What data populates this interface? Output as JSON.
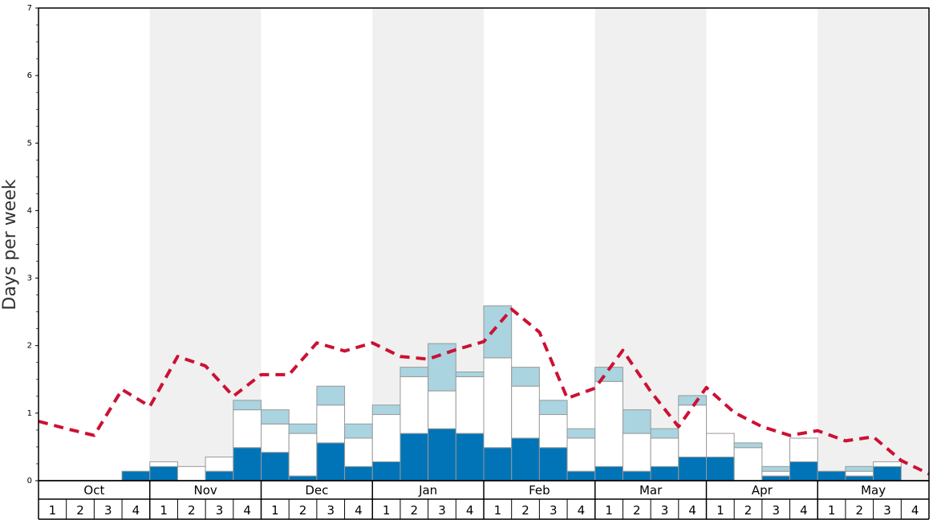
{
  "chart_data": {
    "type": "bar",
    "ylabel": "Days per week",
    "ylim": [
      0,
      7
    ],
    "yticks": [
      0,
      1,
      2,
      3,
      4,
      5,
      6,
      7
    ],
    "months": [
      "Oct",
      "Nov",
      "Dec",
      "Jan",
      "Feb",
      "Mar",
      "Apr",
      "May"
    ],
    "weeks": [
      "1",
      "2",
      "3",
      "4"
    ],
    "colors": {
      "shade": "#f0f0f0",
      "dark": "#0074b7",
      "white": "#ffffff",
      "light": "#a9d4e0",
      "line": "#cc1133",
      "bar_stroke": "#999999"
    },
    "series": [
      {
        "key": "dark",
        "values": [
          0,
          0,
          0,
          0.14,
          0.21,
          0,
          0.14,
          0.49,
          0.42,
          0.07,
          0.56,
          0.21,
          0.28,
          0.7,
          0.77,
          0.7,
          0.49,
          0.63,
          0.49,
          0.14,
          0.21,
          0.14,
          0.21,
          0.35,
          0.35,
          0,
          0.07,
          0.28,
          0.14,
          0.07,
          0.21,
          0
        ]
      },
      {
        "key": "white",
        "values": [
          0,
          0,
          0,
          0,
          0.07,
          0.21,
          0.21,
          0.56,
          0.42,
          0.63,
          0.56,
          0.42,
          0.7,
          0.84,
          0.56,
          0.84,
          1.33,
          0.77,
          0.49,
          0.49,
          1.26,
          0.56,
          0.42,
          0.77,
          0.35,
          0.49,
          0.07,
          0.35,
          0,
          0.07,
          0.07,
          0
        ]
      },
      {
        "key": "light",
        "values": [
          0,
          0,
          0,
          0,
          0,
          0,
          0,
          0.14,
          0.21,
          0.14,
          0.28,
          0.21,
          0.14,
          0.14,
          0.7,
          0.07,
          0.77,
          0.28,
          0.21,
          0.14,
          0.21,
          0.35,
          0.14,
          0.14,
          0,
          0.07,
          0.07,
          0,
          0,
          0.07,
          0,
          0
        ]
      }
    ],
    "line": {
      "key": "line",
      "values": [
        0.88,
        0.77,
        0.67,
        1.35,
        1.1,
        1.84,
        1.7,
        1.25,
        1.57,
        1.57,
        2.04,
        1.92,
        2.04,
        1.84,
        1.8,
        1.94,
        2.06,
        2.54,
        2.2,
        1.22,
        1.37,
        1.93,
        1.32,
        0.8,
        1.38,
        1.01,
        0.8,
        0.67,
        0.74,
        0.59,
        0.65,
        0.3,
        0.1
      ]
    }
  }
}
